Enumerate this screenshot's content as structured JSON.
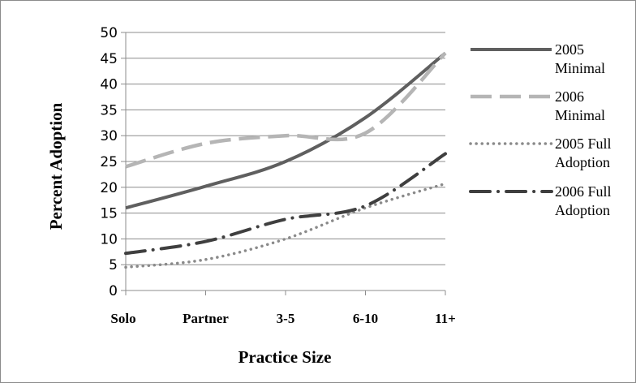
{
  "chart_data": {
    "type": "line",
    "categories": [
      "Solo",
      "Partner",
      "3-5",
      "6-10",
      "11+"
    ],
    "xlabel": "Practice Size",
    "ylabel": "Percent Adoption",
    "ylim": [
      0,
      50
    ],
    "yticks": [
      "0",
      "5",
      "10",
      "15",
      "20",
      "25",
      "30",
      "35",
      "40",
      "45",
      "50"
    ],
    "grid": true,
    "legend_position": "right",
    "series": [
      {
        "name_lines": [
          "2005",
          "Minimal"
        ],
        "style": "solid",
        "color": "#5f5f5f",
        "values": [
          16,
          20.2,
          25,
          33.5,
          46
        ]
      },
      {
        "name_lines": [
          "2006",
          "Minimal"
        ],
        "style": "dashed",
        "color": "#b5b5b5",
        "values": [
          24,
          28.5,
          30,
          30.5,
          46
        ]
      },
      {
        "name_lines": [
          "2005 Full",
          "Adoption"
        ],
        "style": "dotted",
        "color": "#8a8a8a",
        "values": [
          4.5,
          6,
          10,
          16,
          20.7
        ]
      },
      {
        "name_lines": [
          "2006 Full",
          "Adoption"
        ],
        "style": "dashdot",
        "color": "#3f3f3f",
        "values": [
          7.2,
          9.5,
          13.8,
          16.4,
          26.5
        ]
      }
    ]
  }
}
